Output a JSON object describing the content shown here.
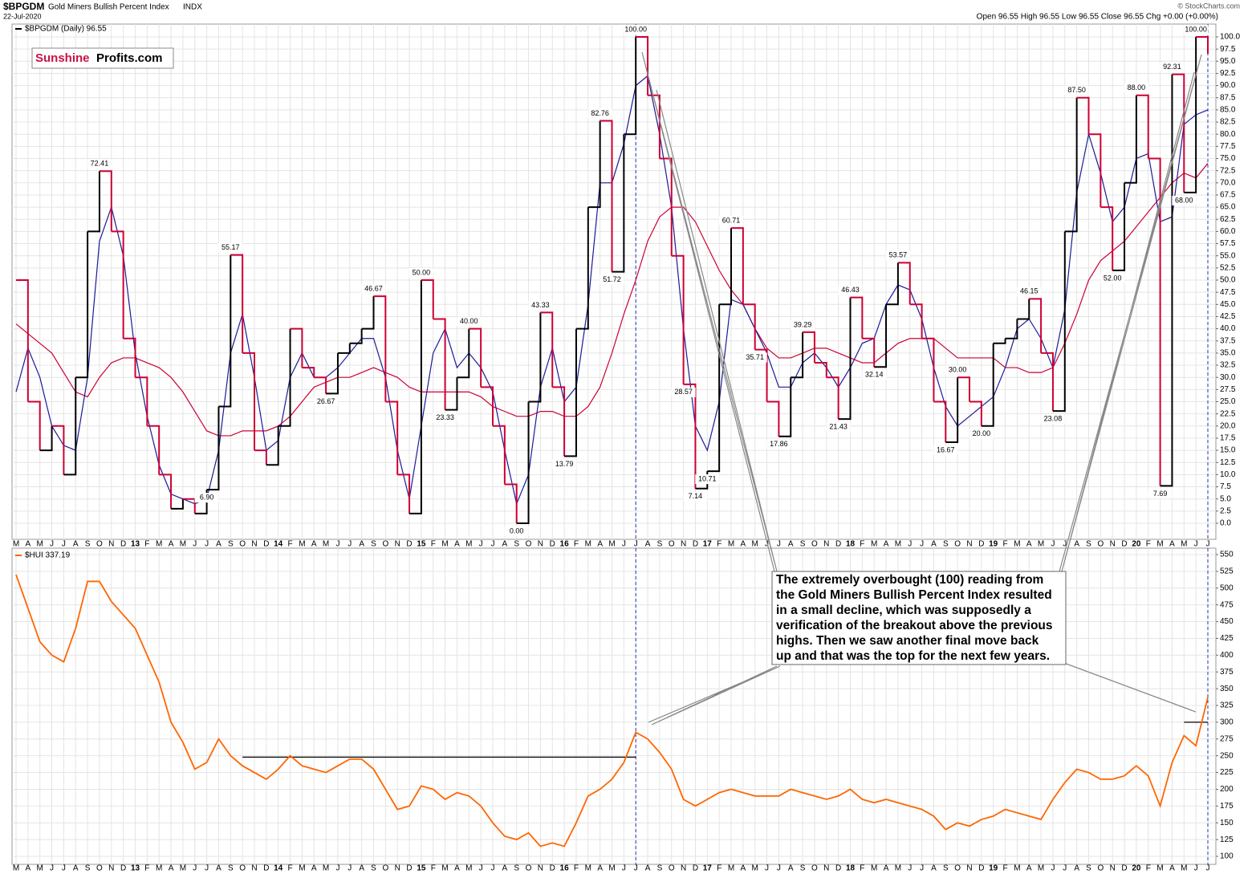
{
  "header": {
    "symbol": "$BPGDM",
    "title": "Gold Miners Bullish Percent Index",
    "exchange": "INDX",
    "date": "22-Jul-2020",
    "quote": "Open 96.55 High 96.55 Low 96.55 Close 96.55 Chg +0.00 (+0.00%)",
    "credit": "© StockCharts.com",
    "logo_1": "Sunshine",
    "logo_2": "Profits.com"
  },
  "annotation": {
    "lines": [
      "The extremely overbought (100) reading from",
      "the Gold Miners Bullish Percent Index resulted",
      "in a small decline, which was supposedly a",
      "verification of the breakout above the previous",
      "highs. Then we saw another final move back",
      "up and that was the top for the next few years."
    ]
  },
  "chart_data": [
    {
      "type": "line",
      "step": true,
      "legend": "$BPGDM (Daily) 96.55",
      "grid": true,
      "categories": [
        "M",
        "A",
        "M",
        "J",
        "J",
        "A",
        "S",
        "O",
        "N",
        "D",
        "13",
        "F",
        "M",
        "A",
        "M",
        "J",
        "J",
        "A",
        "S",
        "O",
        "N",
        "D",
        "14",
        "F",
        "M",
        "A",
        "M",
        "J",
        "J",
        "A",
        "S",
        "O",
        "N",
        "D",
        "15",
        "F",
        "M",
        "A",
        "M",
        "J",
        "J",
        "A",
        "S",
        "O",
        "N",
        "D",
        "16",
        "F",
        "M",
        "A",
        "M",
        "J",
        "J",
        "A",
        "S",
        "O",
        "N",
        "D",
        "17",
        "F",
        "M",
        "A",
        "M",
        "J",
        "J",
        "A",
        "S",
        "O",
        "N",
        "D",
        "18",
        "F",
        "M",
        "A",
        "M",
        "J",
        "J",
        "A",
        "S",
        "O",
        "N",
        "D",
        "19",
        "F",
        "M",
        "A",
        "M",
        "J",
        "J",
        "A",
        "S",
        "O",
        "N",
        "D",
        "20",
        "F",
        "M",
        "A",
        "M",
        "J",
        "J"
      ],
      "ylim": [
        0,
        100
      ],
      "yticks": [
        {
          "value": 0,
          "label": "0.0"
        },
        2.5,
        {
          "value": 5,
          "label": "5.0"
        },
        7.5,
        {
          "value": 10,
          "label": "10.0"
        },
        12.5,
        {
          "value": 15,
          "label": "15.0"
        },
        17.5,
        {
          "value": 20,
          "label": "20.0"
        },
        22.5,
        {
          "value": 25,
          "label": "25.0"
        },
        27.5,
        {
          "value": 30,
          "label": "30.0"
        },
        32.5,
        {
          "value": 35,
          "label": "35.0"
        },
        37.5,
        {
          "value": 40,
          "label": "40.0"
        },
        42.5,
        {
          "value": 45,
          "label": "45.0"
        },
        47.5,
        {
          "value": 50,
          "label": "50.0"
        },
        52.5,
        {
          "value": 55,
          "label": "55.0"
        },
        57.5,
        {
          "value": 60,
          "label": "60.0"
        },
        62.5,
        {
          "value": 65,
          "label": "65.0"
        },
        67.5,
        {
          "value": 70,
          "label": "70.0"
        },
        72.5,
        {
          "value": 75,
          "label": "75.0"
        },
        77.5,
        {
          "value": 80,
          "label": "80.0"
        },
        82.5,
        {
          "value": 85,
          "label": "85.0"
        },
        87.5,
        {
          "value": 90,
          "label": "90.0"
        },
        92.5,
        {
          "value": 95,
          "label": "95.0"
        },
        97.5,
        {
          "value": 100,
          "label": "100.0"
        }
      ],
      "vlines": [
        52,
        100
      ],
      "vline_color": "#2233bb",
      "series": [
        {
          "color": "#000000",
          "down_color": "#cc0033",
          "values": [
            50,
            25,
            15,
            20,
            10,
            30,
            60,
            72.41,
            60,
            38,
            30,
            20,
            10,
            3,
            5,
            2,
            6.9,
            24,
            55.17,
            35,
            15,
            12,
            20,
            40,
            32,
            30,
            26.67,
            35,
            37,
            40,
            46.67,
            25,
            10,
            2,
            50,
            42,
            23.33,
            30,
            40,
            28,
            20,
            8,
            0,
            25,
            43.33,
            28,
            13.79,
            40,
            65,
            82.76,
            51.72,
            80,
            100,
            88,
            75,
            55,
            28.57,
            7.14,
            10.71,
            45,
            60.71,
            45,
            35.71,
            25,
            17.86,
            30,
            39.29,
            33,
            30,
            21.43,
            46.43,
            38,
            32.14,
            45,
            53.57,
            45,
            38,
            25,
            16.67,
            30,
            25,
            20,
            37,
            38,
            42,
            46.15,
            35,
            23.08,
            60,
            87.5,
            80,
            65,
            52,
            70,
            88,
            75,
            7.69,
            92.31,
            68,
            100,
            96.55
          ],
          "value_labels": [
            null,
            null,
            null,
            null,
            null,
            null,
            null,
            "72.41",
            null,
            null,
            null,
            null,
            null,
            null,
            null,
            null,
            "6.90",
            null,
            "55.17",
            null,
            null,
            null,
            null,
            null,
            null,
            null,
            "26.67",
            null,
            null,
            null,
            "46.67",
            null,
            null,
            null,
            "50.00",
            null,
            "23.33",
            null,
            "40.00",
            null,
            null,
            null,
            "0.00",
            null,
            "43.33",
            null,
            "13.79",
            null,
            null,
            "82.76",
            "51.72",
            null,
            "100.00",
            null,
            null,
            null,
            "28.57",
            "7.14",
            "10.71",
            null,
            "60.71",
            null,
            "35.71",
            null,
            "17.86",
            null,
            "39.29",
            null,
            null,
            "21.43",
            "46.43",
            null,
            "32.14",
            null,
            "53.57",
            null,
            null,
            null,
            "16.67",
            "30.00",
            null,
            "20.00",
            null,
            null,
            null,
            "46.15",
            null,
            "23.08",
            null,
            "87.50",
            null,
            null,
            "52.00",
            null,
            "88.00",
            null,
            "7.69",
            "92.31",
            "68.00",
            "100.00",
            null
          ]
        },
        {
          "color": "#1a1a99",
          "values": [
            27,
            36,
            30,
            20,
            16,
            15,
            30,
            58,
            65,
            55,
            35,
            22,
            12,
            6,
            5,
            4,
            5,
            15,
            35,
            43,
            30,
            15,
            17,
            30,
            35,
            30,
            30,
            32,
            35,
            38,
            38,
            30,
            15,
            5,
            20,
            35,
            40,
            32,
            35,
            32,
            27,
            15,
            4,
            10,
            28,
            36,
            25,
            28,
            45,
            70,
            70,
            78,
            90,
            92,
            80,
            65,
            40,
            20,
            15,
            25,
            46,
            45,
            40,
            35,
            28,
            28,
            33,
            35,
            32,
            28,
            32,
            37,
            38,
            45,
            49,
            48,
            42,
            32,
            24,
            20,
            22,
            24,
            26,
            32,
            40,
            42,
            38,
            32,
            44,
            68,
            80,
            72,
            62,
            65,
            75,
            76,
            62,
            63,
            82,
            84,
            85
          ]
        },
        {
          "color": "#cc0033",
          "values": [
            41,
            39,
            37,
            35,
            31,
            27,
            26,
            30,
            33,
            34,
            34,
            33,
            32,
            30,
            27,
            23,
            19,
            18,
            18,
            19,
            19,
            19,
            20,
            22,
            25,
            28,
            29,
            30,
            30,
            31,
            32,
            31,
            30,
            28,
            27,
            27,
            27,
            27,
            27,
            26,
            24,
            23,
            22,
            22,
            23,
            23,
            22,
            22,
            24,
            28,
            35,
            43,
            50,
            58,
            63,
            65,
            65,
            62,
            57,
            52,
            48,
            45,
            40,
            36,
            34,
            34,
            35,
            36,
            36,
            35,
            34,
            33,
            33,
            35,
            37,
            38,
            38,
            38,
            36,
            34,
            34,
            34,
            34,
            32,
            32,
            31,
            31,
            32,
            37,
            43,
            50,
            54,
            56,
            58,
            61,
            64,
            67,
            70,
            72,
            71,
            74
          ]
        }
      ]
    },
    {
      "type": "line",
      "legend": "$HUI 337.19",
      "grid": true,
      "categories": [
        "M",
        "A",
        "M",
        "J",
        "J",
        "A",
        "S",
        "O",
        "N",
        "D",
        "13",
        "F",
        "M",
        "A",
        "M",
        "J",
        "J",
        "A",
        "S",
        "O",
        "N",
        "D",
        "14",
        "F",
        "M",
        "A",
        "M",
        "J",
        "J",
        "A",
        "S",
        "O",
        "N",
        "D",
        "15",
        "F",
        "M",
        "A",
        "M",
        "J",
        "J",
        "A",
        "S",
        "O",
        "N",
        "D",
        "16",
        "F",
        "M",
        "A",
        "M",
        "J",
        "J",
        "A",
        "S",
        "O",
        "N",
        "D",
        "17",
        "F",
        "M",
        "A",
        "M",
        "J",
        "J",
        "A",
        "S",
        "O",
        "N",
        "D",
        "18",
        "F",
        "M",
        "A",
        "M",
        "J",
        "J",
        "A",
        "S",
        "O",
        "N",
        "D",
        "19",
        "F",
        "M",
        "A",
        "M",
        "J",
        "J",
        "A",
        "S",
        "O",
        "N",
        "D",
        "20",
        "F",
        "M",
        "A",
        "M",
        "J",
        "J"
      ],
      "ylim": [
        100,
        550
      ],
      "yticks": [
        100,
        125,
        150,
        175,
        200,
        225,
        250,
        275,
        300,
        325,
        350,
        375,
        400,
        425,
        450,
        475,
        500,
        525,
        550
      ],
      "vlines": [
        52,
        100
      ],
      "vline_color": "#2233bb",
      "hlines": [
        {
          "value": 248,
          "from": 19,
          "to": 52
        },
        {
          "value": 300,
          "from": 98,
          "to": 100
        }
      ],
      "series": [
        {
          "color": "#ff6600",
          "values": [
            520,
            470,
            420,
            400,
            390,
            440,
            510,
            510,
            480,
            460,
            440,
            400,
            360,
            300,
            270,
            230,
            240,
            275,
            250,
            235,
            225,
            215,
            230,
            250,
            235,
            230,
            225,
            235,
            245,
            245,
            230,
            200,
            170,
            175,
            205,
            200,
            185,
            195,
            190,
            175,
            150,
            130,
            125,
            135,
            115,
            120,
            115,
            150,
            190,
            200,
            215,
            240,
            285,
            275,
            255,
            230,
            185,
            175,
            185,
            195,
            200,
            195,
            190,
            190,
            190,
            200,
            195,
            190,
            185,
            190,
            200,
            185,
            180,
            185,
            180,
            175,
            170,
            160,
            140,
            150,
            145,
            155,
            160,
            170,
            165,
            160,
            155,
            185,
            210,
            230,
            225,
            215,
            215,
            220,
            235,
            220,
            175,
            240,
            280,
            265,
            337.19
          ]
        }
      ]
    }
  ]
}
